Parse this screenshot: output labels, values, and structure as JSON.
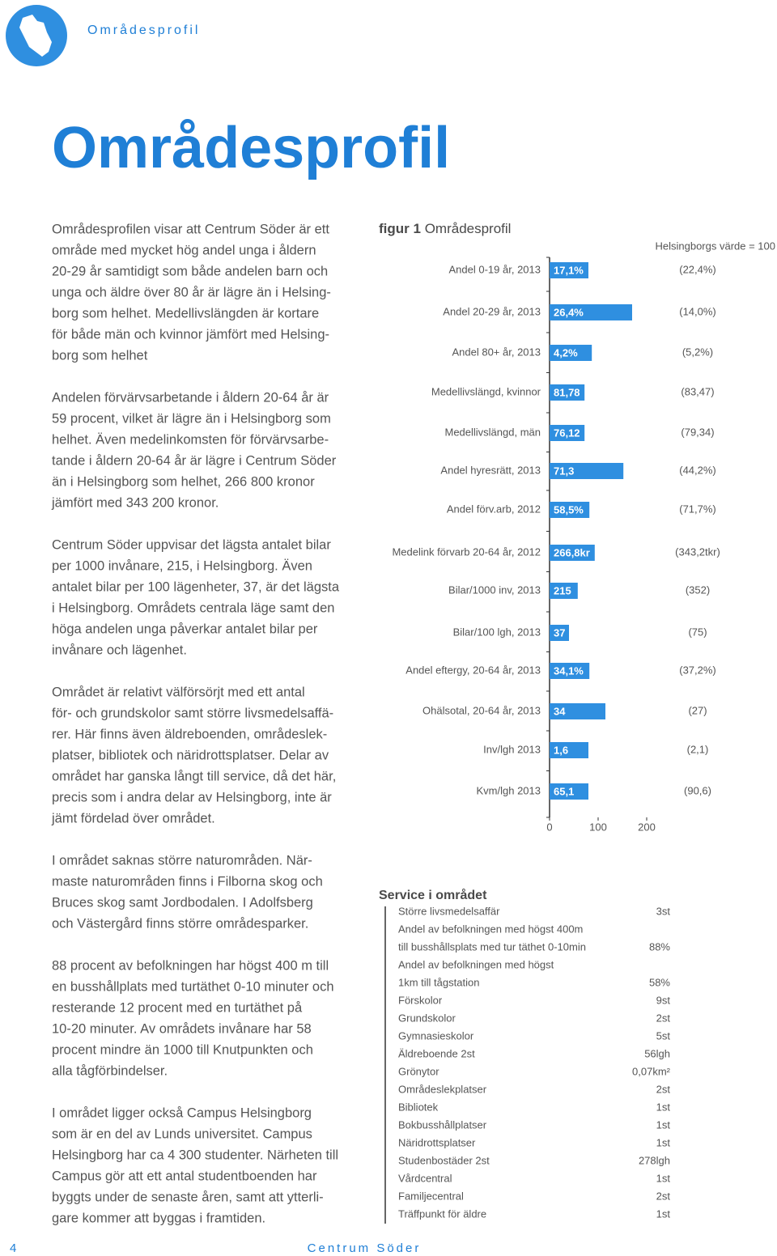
{
  "header": {
    "section": "Områdesprofil",
    "title": "Områdesprofil"
  },
  "paragraphs": [
    [
      "Områdesprofilen visar att Centrum Söder är ett",
      "område med mycket hög andel unga i åldern",
      "20-29 år samtidigt som både andelen barn och",
      "unga och äldre över 80 år är lägre än i Helsing-",
      "borg som helhet. Medellivslängden är kortare",
      "för både män och kvinnor jämfört med Helsing-",
      "borg som helhet"
    ],
    [
      "Andelen förvärvsarbetande i åldern 20-64 år är",
      "59 procent, vilket är lägre än i Helsingborg som",
      "helhet. Även medelinkomsten för förvärvsarbe-",
      "tande i åldern 20-64 år är lägre i Centrum Söder",
      "än i Helsingborg som helhet, 266 800 kronor",
      "jämfört med 343 200 kronor."
    ],
    [
      "Centrum Söder uppvisar det lägsta antalet bilar",
      "per 1000 invånare, 215, i Helsingborg. Även",
      "antalet bilar per 100 lägenheter, 37, är det lägsta",
      "i Helsingborg. Områdets centrala läge samt den",
      "höga andelen unga påverkar antalet bilar per",
      "invånare och lägenhet."
    ],
    [
      "Området är relativt välförsörjt med ett antal",
      "för- och grundskolor samt större livsmedelsaffä-",
      "rer. Här finns även äldreboenden, områdeslek-",
      "platser, bibliotek och näridrottsplatser. Delar av",
      "området har ganska långt till service, då det här,",
      "precis som i andra delar av Helsingborg, inte är",
      "jämt fördelad över området."
    ],
    [
      "I området saknas större naturområden. När-",
      "maste naturområden finns i Filborna skog och",
      "Bruces skog samt Jordbodalen. I Adolfsberg",
      "och Västergård finns större områdesparker."
    ],
    [
      "88 procent av befolkningen har högst 400 m till",
      "en busshållplats med turtäthet 0-10 minuter och",
      "resterande 12 procent med en turtäthet på",
      "10-20 minuter. Av områdets invånare har 58",
      "procent mindre än 1000 till Knutpunkten och",
      "alla tågförbindelser."
    ],
    [
      "I området ligger också Campus Helsingborg",
      "som är en del av Lunds universitet. Campus",
      "Helsingborg har ca 4 300 studenter. Närheten till",
      "Campus gör att ett antal studentboenden har",
      "byggts under de senaste åren, samt att ytterli-",
      "gare kommer att byggas i framtiden."
    ]
  ],
  "chart_data": {
    "type": "bar",
    "title_prefix": "figur 1",
    "title": "Områdesprofil",
    "reference_note": "Helsingborgs värde = 100",
    "color": "#2f8fe0",
    "xlim": [
      0,
      230
    ],
    "xticks": [
      0,
      100,
      200
    ],
    "categories": [
      "Andel 0-19 år, 2013",
      "Andel 20-29 år, 2013",
      "Andel 80+ år, 2013",
      "Medellivslängd, kvinnor",
      "Medellivslängd, män",
      "Andel hyresrätt, 2013",
      "Andel förv.arb, 2012",
      "Medelink förvarb 20-64 år, 2012",
      "Bilar/1000 inv, 2013",
      "Bilar/100 lgh, 2013",
      "Andel eftergy, 20-64 år, 2013",
      "Ohälsotal, 20-64 år, 2013",
      "Inv/lgh 2013",
      "Kvm/lgh 2013"
    ],
    "values": [
      80,
      170,
      87,
      72,
      72,
      152,
      82,
      93,
      58,
      40,
      82,
      115,
      80,
      80
    ],
    "bar_texts": [
      "17,1%",
      "26,4%",
      "4,2%",
      "81,78",
      "76,12",
      "71,3",
      "58,5%",
      "266,8kr",
      "215",
      "37",
      "34,1%",
      "34",
      "1,6",
      "65,1"
    ],
    "references": [
      "(22,4%)",
      "(14,0%)",
      "(5,2%)",
      "(83,47)",
      "(79,34)",
      "(44,2%)",
      "(71,7%)",
      "(343,2tkr)",
      "(352)",
      "(75)",
      "(37,2%)",
      "(27)",
      "(2,1)",
      "(90,6)"
    ]
  },
  "service": {
    "title": "Service i området",
    "rows": [
      [
        "Större livsmedelsaffär",
        "3st"
      ],
      [
        "Andel av befolkningen med högst 400m"
      ],
      [
        "till busshållsplats med tur täthet 0-10min",
        "88%"
      ],
      [
        "Andel av befolkningen med högst"
      ],
      [
        "1km till tågstation",
        "58%"
      ],
      [
        "Förskolor",
        "9st"
      ],
      [
        "Grundskolor",
        "2st"
      ],
      [
        "Gymnasieskolor",
        "5st"
      ],
      [
        "Äldreboende 2st",
        "56lgh"
      ],
      [
        "Grönytor",
        "0,07km²"
      ],
      [
        "Områdeslekplatser",
        "2st"
      ],
      [
        "Bibliotek",
        "1st"
      ],
      [
        "Bokbusshållplatser",
        "1st"
      ],
      [
        "Näridrottsplatser",
        "1st"
      ],
      [
        "Studenbostäder 2st",
        "278lgh"
      ],
      [
        "Vårdcentral",
        "1st"
      ],
      [
        "Familjecentral",
        "2st"
      ],
      [
        "Träffpunkt för äldre",
        "1st"
      ]
    ]
  },
  "footer": {
    "page": "4",
    "name": "Centrum Söder"
  }
}
